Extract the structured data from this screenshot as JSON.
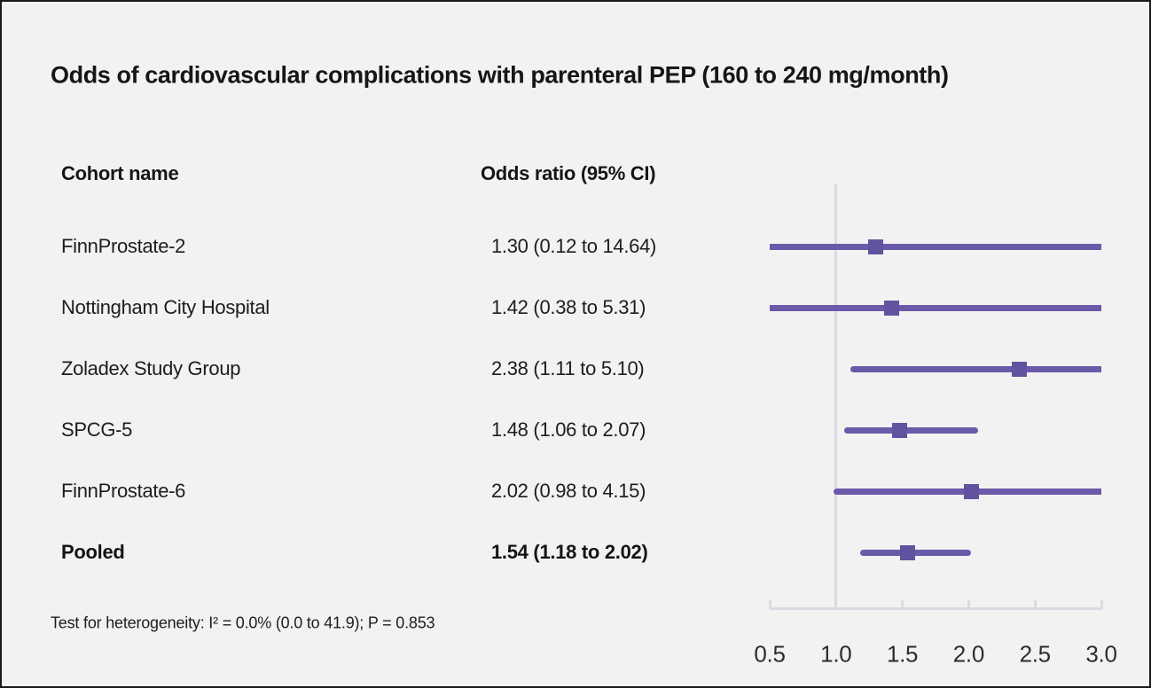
{
  "title": "Odds of cardiovascular complications with parenteral PEP (160 to 240 mg/month)",
  "columns": {
    "cohort": "Cohort name",
    "odds_ratio": "Odds ratio (95% CI)"
  },
  "footnote": "Test for heterogeneity: I² = 0.0% (0.0 to 41.9); P = 0.853",
  "colors": {
    "accent_line": "#6a5aa9",
    "accent_marker": "#6253a1",
    "axis": "#d9dbe2",
    "background": "#f2f2f2",
    "text": "#1a1a1a"
  },
  "chart_data": {
    "type": "forest",
    "title": "Odds of cardiovascular complications with parenteral PEP (160 to 240 mg/month)",
    "xlim": [
      0.5,
      3.0
    ],
    "ref_line": 1.0,
    "ticks": [
      "0.5",
      "1.0",
      "1.5",
      "2.0",
      "2.5",
      "3.0"
    ],
    "tick_values": [
      0.5,
      1.0,
      1.5,
      2.0,
      2.5,
      3.0
    ],
    "studies": [
      {
        "name": "FinnProstate-2",
        "label": "1.30 (0.12 to 14.64)",
        "or": 1.3,
        "ci_low": 0.12,
        "ci_high": 14.64,
        "pooled": false
      },
      {
        "name": "Nottingham City Hospital",
        "label": "1.42 (0.38 to 5.31)",
        "or": 1.42,
        "ci_low": 0.38,
        "ci_high": 5.31,
        "pooled": false
      },
      {
        "name": "Zoladex Study Group",
        "label": "2.38 (1.11 to 5.10)",
        "or": 2.38,
        "ci_low": 1.11,
        "ci_high": 5.1,
        "pooled": false
      },
      {
        "name": "SPCG-5",
        "label": "1.48 (1.06 to 2.07)",
        "or": 1.48,
        "ci_low": 1.06,
        "ci_high": 2.07,
        "pooled": false
      },
      {
        "name": "FinnProstate-6",
        "label": "2.02 (0.98 to 4.15)",
        "or": 2.02,
        "ci_low": 0.98,
        "ci_high": 4.15,
        "pooled": false
      },
      {
        "name": "Pooled",
        "label": "1.54 (1.18 to 2.02)",
        "or": 1.54,
        "ci_low": 1.18,
        "ci_high": 2.02,
        "pooled": true
      }
    ]
  }
}
